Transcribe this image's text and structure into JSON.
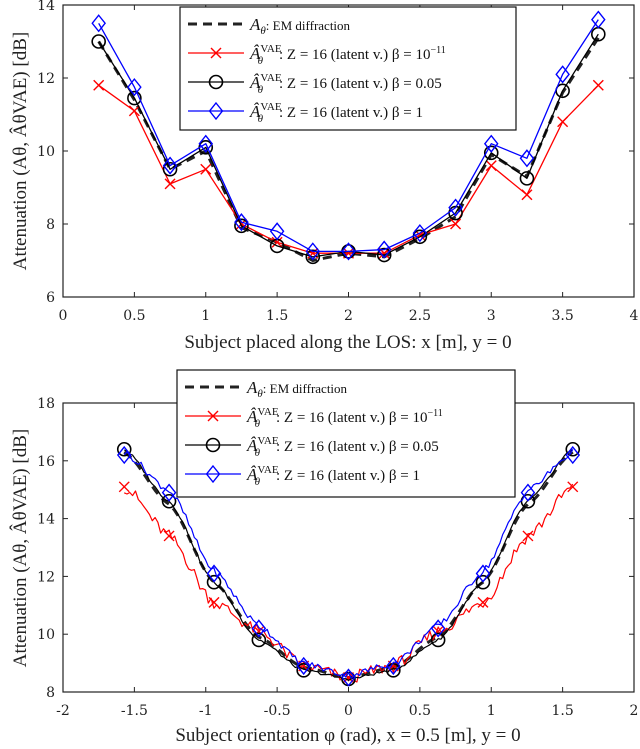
{
  "chart_data": [
    {
      "type": "line",
      "title": "",
      "xlabel": "Subject placed along the LOS: x [m], y = 0",
      "ylabel": "Attenuation (Aθ, ÂθVAE) [dB]",
      "xlim": [
        0,
        4
      ],
      "ylim": [
        6,
        14
      ],
      "xticks": [
        "0",
        "0.5",
        "1",
        "1.5",
        "2",
        "2.5",
        "3",
        "3.5",
        "4"
      ],
      "xtick_values": [
        0,
        0.5,
        1,
        1.5,
        2,
        2.5,
        3,
        3.5,
        4
      ],
      "yticks": [
        "6",
        "8",
        "10",
        "12",
        "14"
      ],
      "ytick_values": [
        6,
        8,
        10,
        12,
        14
      ],
      "grid": false,
      "legend_position": "top-center",
      "x": [
        0.25,
        0.5,
        0.75,
        1.0,
        1.25,
        1.5,
        1.75,
        2.0,
        2.25,
        2.5,
        2.75,
        3.0,
        3.25,
        3.5,
        3.75
      ],
      "series": [
        {
          "name": "Aθ: EM diffraction",
          "symbol": "Aθ",
          "desc": ": EM diffraction",
          "color": "#222222",
          "style": "dashed",
          "marker": "none",
          "values": [
            13.0,
            11.4,
            9.5,
            10.0,
            7.9,
            7.5,
            7.0,
            7.2,
            7.1,
            7.6,
            8.2,
            9.9,
            9.3,
            11.6,
            13.1
          ]
        },
        {
          "name": "ÂθVAE: Z = 16 (latent v.) β = 10^-11",
          "symbol": "ÂθVAE",
          "desc": ": Z = 16 (latent v.) β = 10",
          "sup": "−11",
          "color": "#ff0000",
          "style": "solid",
          "marker": "x",
          "values": [
            11.8,
            11.1,
            9.1,
            9.5,
            8.0,
            7.5,
            7.2,
            7.2,
            7.2,
            7.7,
            8.0,
            9.6,
            8.8,
            10.8,
            11.8
          ]
        },
        {
          "name": "ÂθVAE: Z = 16 (latent v.) β = 0.05",
          "symbol": "ÂθVAE",
          "desc": ": Z = 16 (latent v.) β = 0.05",
          "color": "#000000",
          "style": "solid",
          "marker": "circle",
          "values": [
            13.0,
            11.45,
            9.5,
            10.1,
            7.95,
            7.4,
            7.1,
            7.25,
            7.15,
            7.65,
            8.3,
            9.95,
            9.25,
            11.65,
            13.2
          ]
        },
        {
          "name": "ÂθVAE: Z = 16 (latent v.) β = 1",
          "symbol": "ÂθVAE",
          "desc": ": Z = 16 (latent v.) β = 1",
          "color": "#0000ff",
          "style": "solid",
          "marker": "diamond",
          "values": [
            13.5,
            11.75,
            9.6,
            10.2,
            8.05,
            7.8,
            7.25,
            7.25,
            7.3,
            7.75,
            8.45,
            10.2,
            9.8,
            12.1,
            13.6
          ]
        }
      ]
    },
    {
      "type": "line",
      "title": "",
      "xlabel": "Subject orientation φ (rad), x = 0.5 [m], y = 0",
      "ylabel": "Attenuation (Aθ, ÂθVAE) [dB]",
      "xlim": [
        -2,
        2
      ],
      "ylim": [
        8,
        18
      ],
      "xticks": [
        "-2",
        "-1.5",
        "-1",
        "-0.5",
        "0",
        "0.5",
        "1",
        "1.5",
        "2"
      ],
      "xtick_values": [
        -2,
        -1.5,
        -1,
        -0.5,
        0,
        0.5,
        1,
        1.5,
        2
      ],
      "yticks": [
        "8",
        "10",
        "12",
        "14",
        "16",
        "18"
      ],
      "ytick_values": [
        8,
        10,
        12,
        14,
        16,
        18
      ],
      "grid": false,
      "legend_position": "top-center",
      "x": [
        -1.571,
        -1.257,
        -0.942,
        -0.628,
        -0.314,
        0.0,
        0.314,
        0.628,
        0.942,
        1.257,
        1.571
      ],
      "series": [
        {
          "name": "Aθ: EM diffraction",
          "symbol": "Aθ",
          "desc": ": EM diffraction",
          "color": "#222222",
          "style": "dashed",
          "marker": "none",
          "values": [
            16.3,
            14.5,
            11.8,
            9.9,
            8.85,
            8.5,
            8.85,
            9.9,
            11.8,
            14.5,
            16.3
          ]
        },
        {
          "name": "ÂθVAE: Z = 16 (latent v.) β = 10^-11",
          "symbol": "ÂθVAE",
          "desc": ": Z = 16 (latent v.) β = 10",
          "sup": "−11",
          "color": "#ff0000",
          "style": "solid",
          "marker": "x",
          "values": [
            15.1,
            13.4,
            11.1,
            10.1,
            8.9,
            8.5,
            8.9,
            10.1,
            11.1,
            13.4,
            15.1
          ]
        },
        {
          "name": "ÂθVAE: Z = 16 (latent v.) β = 0.05",
          "symbol": "ÂθVAE",
          "desc": ": Z = 16 (latent v.) β = 0.05",
          "color": "#000000",
          "style": "solid",
          "marker": "circle",
          "values": [
            16.4,
            14.6,
            11.8,
            9.8,
            8.75,
            8.45,
            8.75,
            9.8,
            11.8,
            14.6,
            16.4
          ]
        },
        {
          "name": "ÂθVAE: Z = 16 (latent v.) β = 1",
          "symbol": "ÂθVAE",
          "desc": ": Z = 16 (latent v.) β = 1",
          "color": "#0000ff",
          "style": "solid",
          "marker": "diamond",
          "values": [
            16.2,
            14.9,
            12.1,
            10.2,
            8.9,
            8.5,
            8.9,
            10.2,
            12.1,
            14.9,
            16.2
          ]
        }
      ]
    }
  ]
}
